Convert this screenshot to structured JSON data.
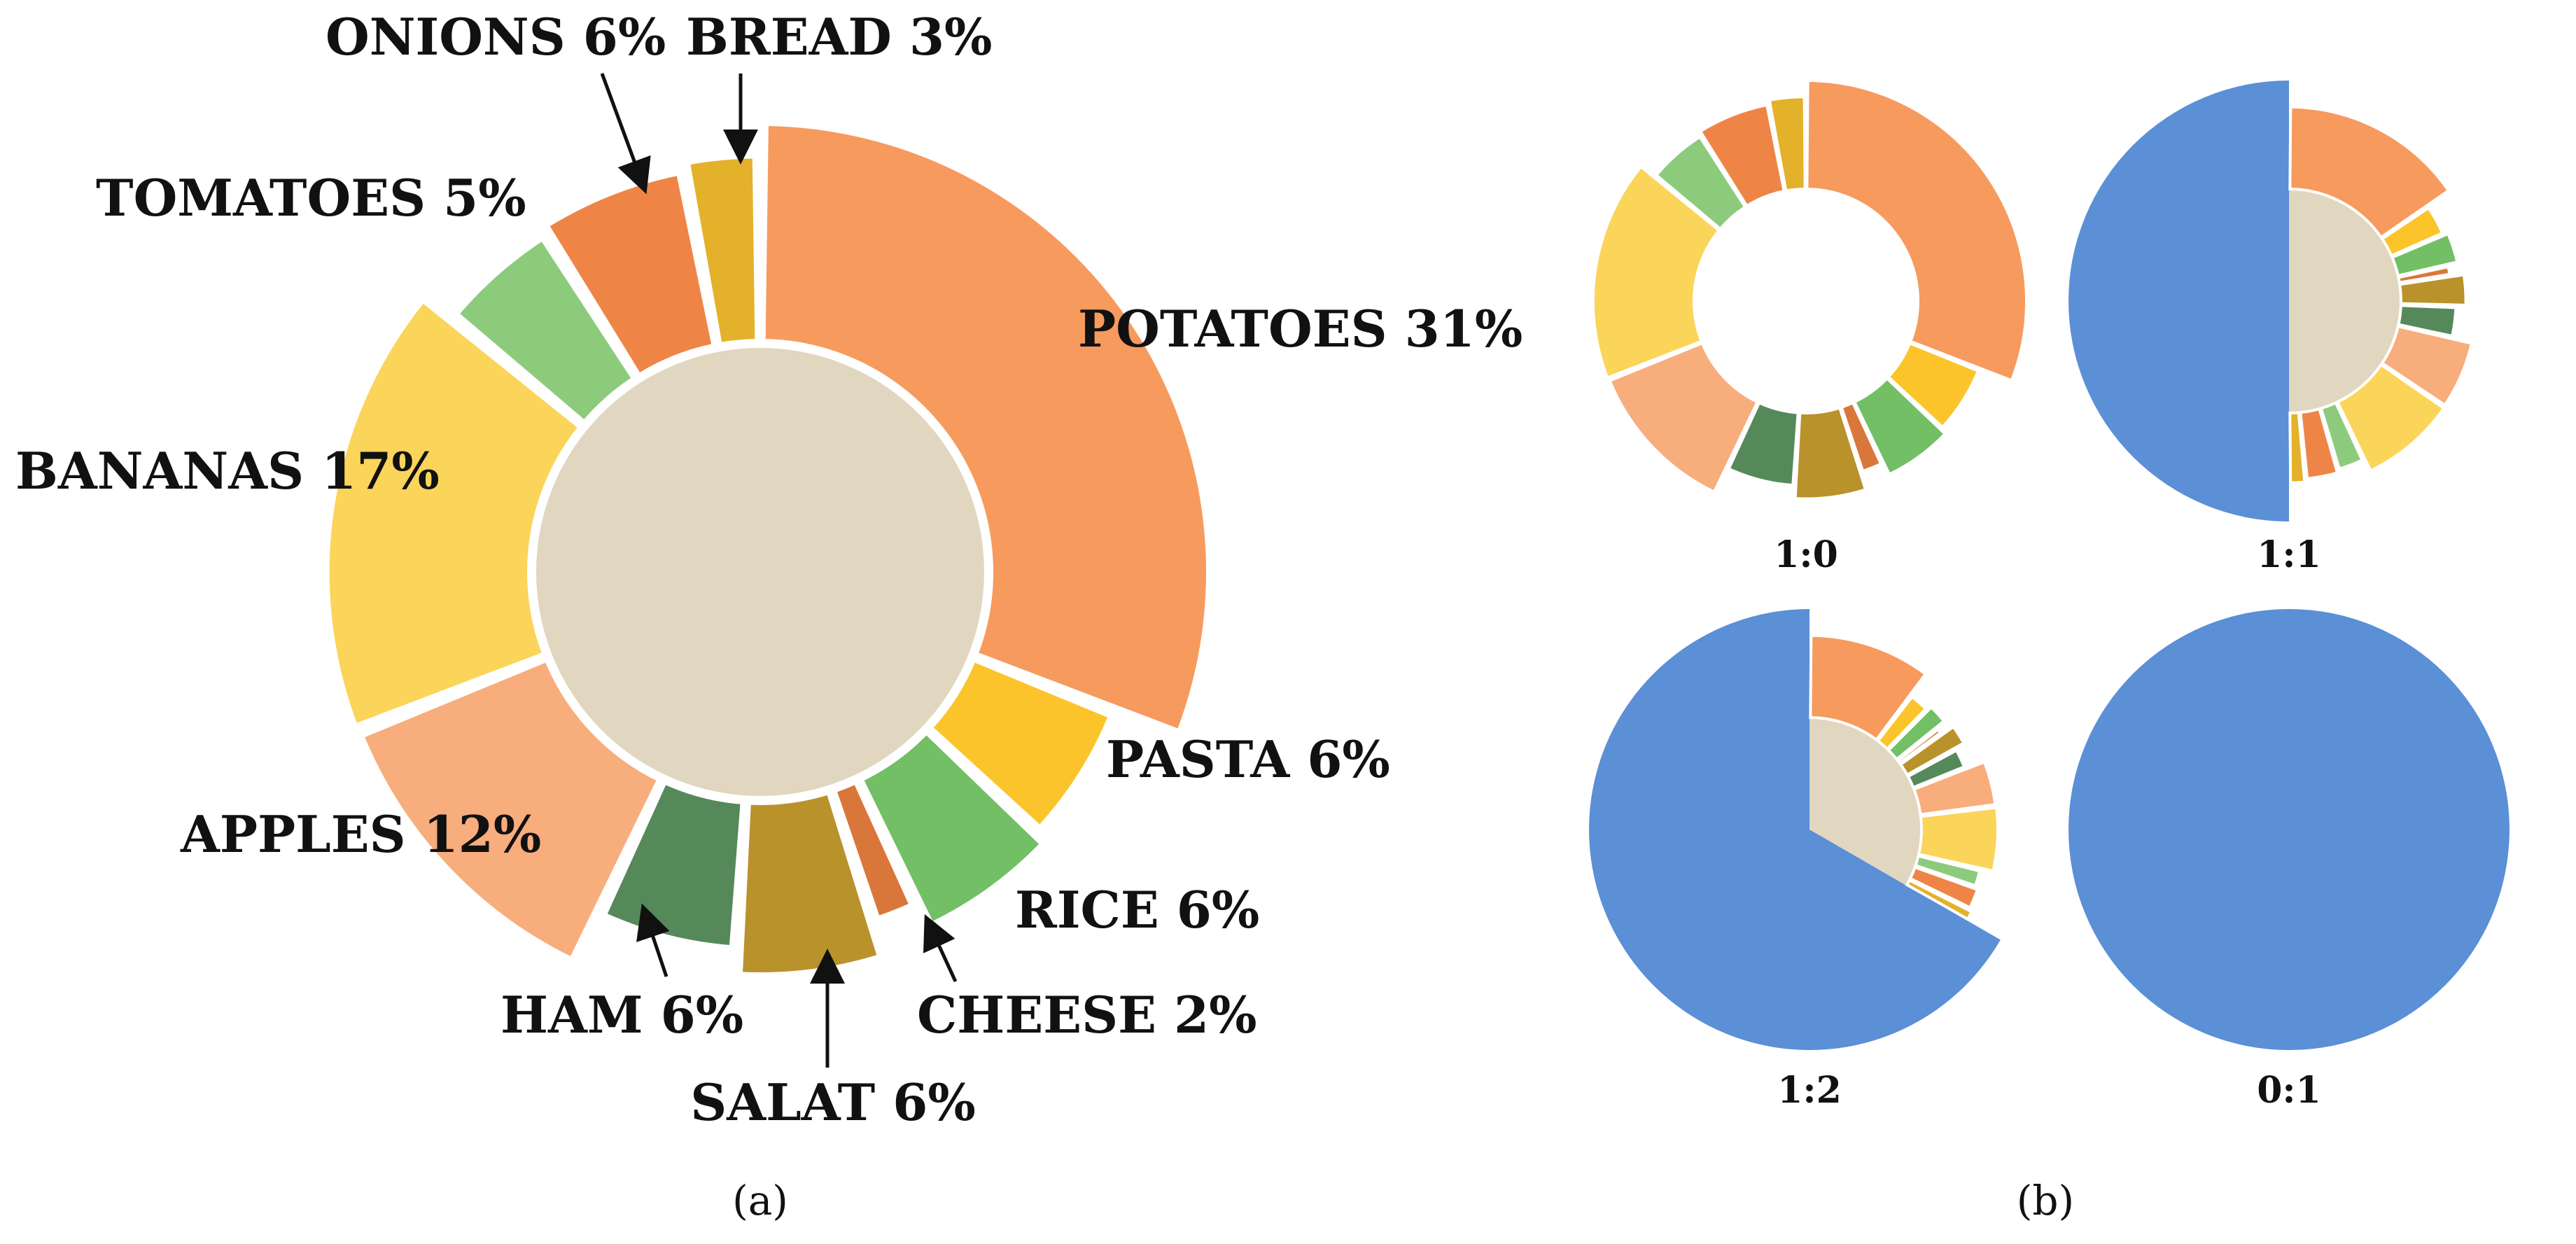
{
  "chart_data": [
    {
      "type": "pie",
      "panel_label": "(a)",
      "slices": [
        {
          "name": "POTATOES",
          "label": "POTATOES 31%",
          "value": 31,
          "color": "#F79A5E"
        },
        {
          "name": "PASTA",
          "label": "PASTA 6%",
          "value": 6,
          "color": "#FBC42A"
        },
        {
          "name": "RICE",
          "label": "RICE 6%",
          "value": 6,
          "color": "#72BF66"
        },
        {
          "name": "CHEESE",
          "label": "CHEESE 2%",
          "value": 2,
          "color": "#D9773B"
        },
        {
          "name": "SALAT",
          "label": "SALAT 6%",
          "value": 6,
          "color": "#B9922C"
        },
        {
          "name": "HAM",
          "label": "HAM 6%",
          "value": 6,
          "color": "#56895A"
        },
        {
          "name": "APPLES",
          "label": "APPLES 12%",
          "value": 12,
          "color": "#F8AD7D"
        },
        {
          "name": "BANANAS",
          "label": "BANANAS 17%",
          "value": 17,
          "color": "#FBD45A"
        },
        {
          "name": "TOMATOES",
          "label": "TOMATOES 5%",
          "value": 5,
          "color": "#8DCB7C"
        },
        {
          "name": "ONIONS",
          "label": "ONIONS 6%",
          "value": 6,
          "color": "#EE8547"
        },
        {
          "name": "BREAD",
          "label": "BREAD 3%",
          "value": 3,
          "color": "#E3B12A"
        }
      ]
    },
    {
      "type": "pie",
      "panel_label": "(b)",
      "insect_color": "#5B8FD6",
      "mixes": [
        {
          "label": "1:0",
          "insect_fraction": 0
        },
        {
          "label": "1:1",
          "insect_fraction": 0.5
        },
        {
          "label": "1:2",
          "insect_fraction": 0.6667
        },
        {
          "label": "0:1",
          "insect_fraction": 1
        }
      ]
    }
  ]
}
